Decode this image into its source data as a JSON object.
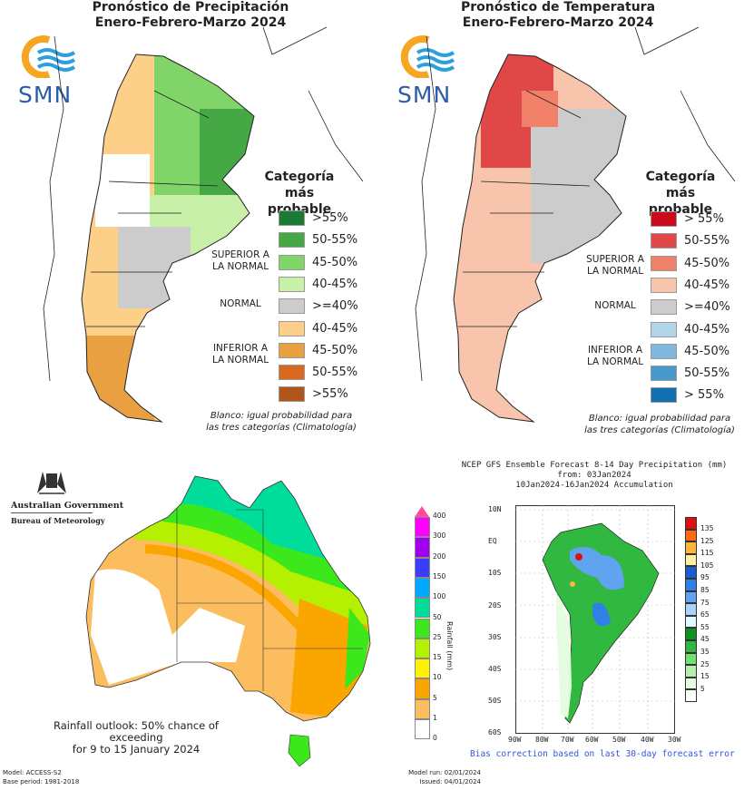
{
  "precip_panel": {
    "title_line1": "Pronóstico de Precipitación",
    "title_line2": "Enero-Febrero-Marzo 2024",
    "logo_text": "SMN",
    "legend_title_line1": "Categoría más",
    "legend_title_line2": "probable",
    "categories": {
      "superior_1": "SUPERIOR A",
      "superior_2": "LA NORMAL",
      "normal": "NORMAL",
      "inferior_1": "INFERIOR A",
      "inferior_2": "LA NORMAL"
    },
    "legend": [
      {
        "label": ">55%",
        "color": "#1a7a33"
      },
      {
        "label": "50-55%",
        "color": "#45a845"
      },
      {
        "label": "45-50%",
        "color": "#80d468"
      },
      {
        "label": "40-45%",
        "color": "#c8f0a8"
      },
      {
        "label": ">=40%",
        "color": "#cccccc"
      },
      {
        "label": "40-45%",
        "color": "#fdd08a"
      },
      {
        "label": "45-50%",
        "color": "#e8a040"
      },
      {
        "label": "50-55%",
        "color": "#d9691e"
      },
      {
        "label": ">55%",
        "color": "#b0561a"
      }
    ],
    "note_line1": "Blanco: igual probabilidad para",
    "note_line2": "las tres categorías (Climatología)"
  },
  "temp_panel": {
    "title_line1": "Pronóstico de Temperatura",
    "title_line2": "Enero-Febrero-Marzo 2024",
    "logo_text": "SMN",
    "legend_title_line1": "Categoría más",
    "legend_title_line2": "probable",
    "categories": {
      "superior_1": "SUPERIOR A",
      "superior_2": "LA NORMAL",
      "normal": "NORMAL",
      "inferior_1": "INFERIOR A",
      "inferior_2": "LA NORMAL"
    },
    "legend": [
      {
        "label": "> 55%",
        "color": "#cc0a1e"
      },
      {
        "label": "50-55%",
        "color": "#e04848"
      },
      {
        "label": "45-50%",
        "color": "#f08068"
      },
      {
        "label": "40-45%",
        "color": "#f8c4ac"
      },
      {
        "label": ">=40%",
        "color": "#cccccc"
      },
      {
        "label": "40-45%",
        "color": "#b4d4ea"
      },
      {
        "label": "45-50%",
        "color": "#80b8de"
      },
      {
        "label": "50-55%",
        "color": "#4898cc"
      },
      {
        "label": "> 55%",
        "color": "#1070b0"
      }
    ],
    "note_line1": "Blanco: igual probabilidad para",
    "note_line2": "las tres categorías (Climatología)"
  },
  "bom_panel": {
    "gov_line": "Australian Government",
    "bureau_line": "Bureau of Meteorology",
    "caption_line1": "Rainfall outlook: 50% chance of exceeding",
    "caption_line2": "for 9 to 15 January 2024",
    "model": "Model: ACCESS-S2",
    "base_period": "Base period: 1981-2018",
    "model_run": "Model run: 02/01/2024",
    "issued": "Issued: 04/01/2024",
    "colorbar_label": "Rainfall (mm)",
    "colorbar": [
      {
        "value": "0",
        "color": "#ffffff"
      },
      {
        "value": "1",
        "color": "#fbbd5e"
      },
      {
        "value": "5",
        "color": "#fba500"
      },
      {
        "value": "10",
        "color": "#fff200"
      },
      {
        "value": "15",
        "color": "#b4f000"
      },
      {
        "value": "25",
        "color": "#3ce81c"
      },
      {
        "value": "50",
        "color": "#00dc9a"
      },
      {
        "value": "100",
        "color": "#00a8ff"
      },
      {
        "value": "150",
        "color": "#3c3cff"
      },
      {
        "value": "200",
        "color": "#a000f0"
      },
      {
        "value": "300",
        "color": "#ff00ff"
      },
      {
        "value": "400",
        "color": "#ff4c9c"
      }
    ]
  },
  "ncep_panel": {
    "title_line1": "NCEP GFS Ensemble Forecast 8-14 Day Precipitation (mm)",
    "title_line2": "from: 03Jan2024",
    "title_line3": "10Jan2024-16Jan2024 Accumulation",
    "lat_ticks": [
      "10N",
      "EQ",
      "10S",
      "20S",
      "30S",
      "40S",
      "50S",
      "60S"
    ],
    "lon_ticks": [
      "90W",
      "80W",
      "70W",
      "60W",
      "50W",
      "40W",
      "30W"
    ],
    "footer": "Bias correction based on last 30-day forecast error",
    "colorbar": [
      {
        "value": "135",
        "color": "#e01010"
      },
      {
        "value": "125",
        "color": "#ff6a10"
      },
      {
        "value": "115",
        "color": "#ffb43c"
      },
      {
        "value": "105",
        "color": "#fff0a0"
      },
      {
        "value": "95",
        "color": "#1c5cd0"
      },
      {
        "value": "85",
        "color": "#3080e8"
      },
      {
        "value": "75",
        "color": "#60a4f0"
      },
      {
        "value": "65",
        "color": "#a8d4f8"
      },
      {
        "value": "55",
        "color": "#e0f8ff"
      },
      {
        "value": "45",
        "color": "#109020"
      },
      {
        "value": "35",
        "color": "#30b840"
      },
      {
        "value": "25",
        "color": "#70e070"
      },
      {
        "value": "15",
        "color": "#b4f0b0"
      },
      {
        "value": "5",
        "color": "#e4fce0"
      },
      {
        "value": "",
        "color": "#ffffff"
      }
    ]
  }
}
